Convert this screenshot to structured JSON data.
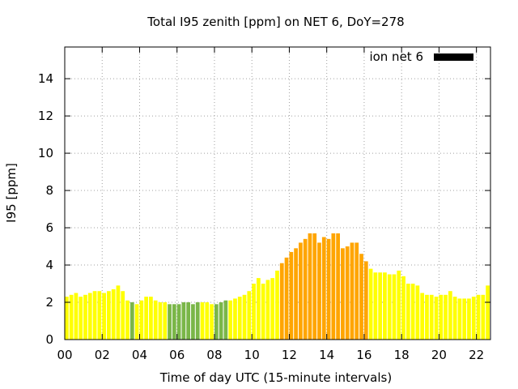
{
  "chart_data": {
    "type": "bar",
    "title": "Total I95 zenith [ppm] on NET 6, DoY=278",
    "xlabel": "Time of day UTC (15-minute intervals)",
    "ylabel": "I95 [ppm]",
    "xlim": [
      0,
      22.75
    ],
    "ylim": [
      0,
      15.7
    ],
    "xticks": [
      0,
      2,
      4,
      6,
      8,
      10,
      12,
      14,
      16,
      18,
      20,
      22
    ],
    "xtick_labels": [
      "00",
      "02",
      "04",
      "06",
      "08",
      "10",
      "12",
      "14",
      "16",
      "18",
      "20",
      "22"
    ],
    "yticks": [
      0,
      2,
      4,
      6,
      8,
      10,
      12,
      14
    ],
    "ytick_labels": [
      "0",
      "2",
      "4",
      "6",
      "8",
      "10",
      "12",
      "14"
    ],
    "grid": true,
    "legend": {
      "label": "ion net 6",
      "color": "#000000",
      "position": "top-right"
    },
    "colors": {
      "yellow": "#ffff00",
      "green": "#7ab648",
      "orange": "#ffa500"
    },
    "interval_hours": 0.25,
    "values": [
      2.3,
      2.4,
      2.5,
      2.3,
      2.4,
      2.5,
      2.6,
      2.6,
      2.5,
      2.6,
      2.7,
      2.9,
      2.6,
      2.1,
      2.0,
      1.9,
      2.1,
      2.3,
      2.3,
      2.1,
      2.0,
      2.0,
      1.9,
      1.9,
      1.9,
      2.0,
      2.0,
      1.9,
      2.0,
      2.0,
      2.0,
      1.9,
      1.9,
      2.0,
      2.1,
      2.1,
      2.2,
      2.3,
      2.4,
      2.6,
      3.0,
      3.3,
      3.0,
      3.2,
      3.3,
      3.7,
      4.1,
      4.4,
      4.7,
      4.9,
      5.2,
      5.4,
      5.7,
      5.7,
      5.2,
      5.5,
      5.4,
      5.7,
      5.7,
      4.9,
      5.0,
      5.2,
      5.2,
      4.6,
      4.2,
      3.8,
      3.6,
      3.6,
      3.6,
      3.5,
      3.5,
      3.7,
      3.4,
      3.0,
      3.0,
      2.9,
      2.5,
      2.4,
      2.4,
      2.3,
      2.4,
      2.4,
      2.6,
      2.3,
      2.2,
      2.2,
      2.2,
      2.3,
      2.4,
      2.4,
      2.9
    ],
    "value_colors": [
      "yellow",
      "yellow",
      "yellow",
      "yellow",
      "yellow",
      "yellow",
      "yellow",
      "yellow",
      "yellow",
      "yellow",
      "yellow",
      "yellow",
      "yellow",
      "yellow",
      "green",
      "yellow",
      "yellow",
      "yellow",
      "yellow",
      "yellow",
      "yellow",
      "yellow",
      "green",
      "green",
      "green",
      "green",
      "green",
      "green",
      "green",
      "yellow",
      "yellow",
      "yellow",
      "green",
      "green",
      "green",
      "yellow",
      "yellow",
      "yellow",
      "yellow",
      "yellow",
      "yellow",
      "yellow",
      "yellow",
      "yellow",
      "yellow",
      "yellow",
      "orange",
      "orange",
      "orange",
      "orange",
      "orange",
      "orange",
      "orange",
      "orange",
      "orange",
      "orange",
      "orange",
      "orange",
      "orange",
      "orange",
      "orange",
      "orange",
      "orange",
      "orange",
      "orange",
      "yellow",
      "yellow",
      "yellow",
      "yellow",
      "yellow",
      "yellow",
      "yellow",
      "yellow",
      "yellow",
      "yellow",
      "yellow",
      "yellow",
      "yellow",
      "yellow",
      "yellow",
      "yellow",
      "yellow",
      "yellow",
      "yellow",
      "yellow",
      "yellow",
      "yellow",
      "yellow",
      "yellow",
      "yellow",
      "yellow"
    ]
  }
}
